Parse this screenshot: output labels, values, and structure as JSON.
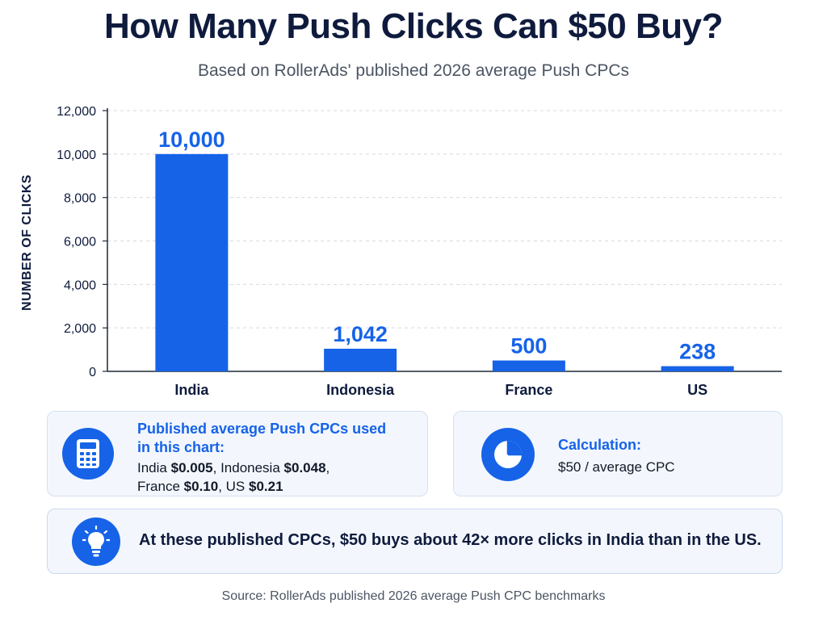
{
  "header": {
    "title": "How Many Push Clicks Can $50 Buy?",
    "subtitle": "Based on RollerAds' published 2026 average Push CPCs"
  },
  "chart_data": {
    "type": "bar",
    "categories": [
      "India",
      "Indonesia",
      "France",
      "US"
    ],
    "values": [
      10000,
      1042,
      500,
      238
    ],
    "value_labels": [
      "10,000",
      "1,042",
      "500",
      "238"
    ],
    "ylabel": "NUMBER OF CLICKS",
    "xlabel": "",
    "ylim": [
      0,
      12000
    ],
    "yticks": [
      0,
      2000,
      4000,
      6000,
      8000,
      10000,
      12000
    ],
    "ytick_labels": [
      "0",
      "2,000",
      "4,000",
      "6,000",
      "8,000",
      "10,000",
      "12,000"
    ],
    "grid": true,
    "bar_color": "#1663e8"
  },
  "cpc_card": {
    "icon": "calculator-icon",
    "heading_line1": "Published average Push CPCs used",
    "heading_line2": "in this chart:",
    "items": [
      {
        "country": "India",
        "value": "$0.005",
        "sep": ", "
      },
      {
        "country": "Indonesia",
        "value": "$0.048",
        "sep": ","
      },
      {
        "country": "France",
        "value": "$0.10",
        "sep": ", "
      },
      {
        "country": "US",
        "value": "$0.21",
        "sep": ""
      }
    ]
  },
  "calc_card": {
    "icon": "pie-chart-icon",
    "heading": "Calculation:",
    "formula": "$50 / average CPC"
  },
  "insight": {
    "icon": "lightbulb-icon",
    "text": "At these published CPCs, $50 buys about 42× more clicks in India than in the US."
  },
  "footer": {
    "source": "Source: RollerAds published 2026 average Push CPC benchmarks"
  },
  "colors": {
    "accent": "#1663e8",
    "title": "#0f1b3d",
    "card_bg": "#f3f7fd"
  }
}
